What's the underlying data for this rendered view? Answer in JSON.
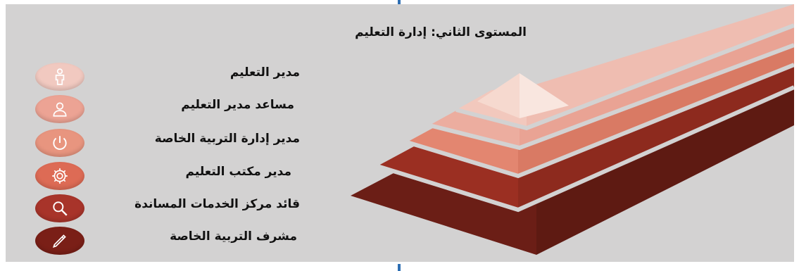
{
  "title": "المستوى الثاني: إدارة التعليم",
  "levels": [
    {
      "label": "مدير التعليم",
      "icon": "person-icon",
      "color": "#f1c9c0"
    },
    {
      "label": "مساعد مدير التعليم",
      "icon": "user-icon",
      "color": "#eca394"
    },
    {
      "label": "مدير إدارة التربية الخاصة",
      "icon": "power-icon",
      "color": "#e8957f"
    },
    {
      "label": "مدير مكتب التعليم",
      "icon": "gear-icon",
      "color": "#dd6b55"
    },
    {
      "label": "قائد مركز الخدمات المساندة",
      "icon": "search-icon",
      "color": "#a8342a"
    },
    {
      "label": "مشرف التربية الخاصة",
      "icon": "pencil-icon",
      "color": "#7a1f17"
    }
  ]
}
